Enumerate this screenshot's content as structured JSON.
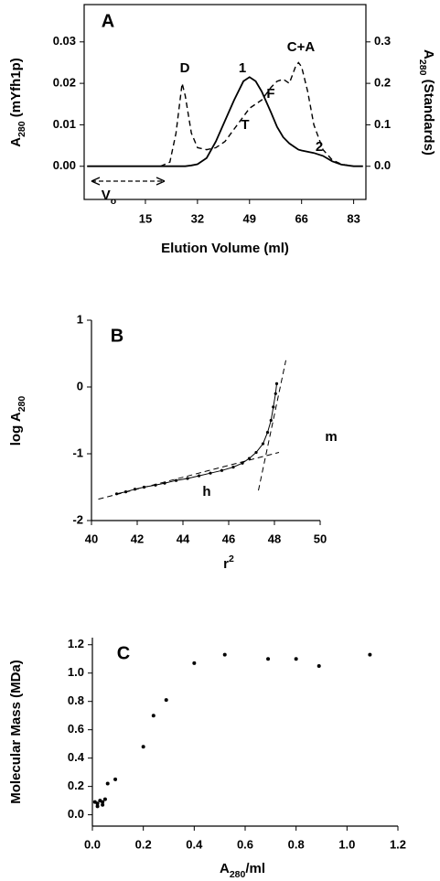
{
  "chart_data": [
    {
      "type": "line",
      "title": "A",
      "xlabel": "Elution Volume (ml)",
      "ylabel": [
        "A",
        "280",
        " (mYfh1p)"
      ],
      "y2label": [
        "A",
        "280",
        " (Standards)"
      ],
      "x": [
        -4,
        0,
        5,
        10,
        15,
        20,
        23,
        25,
        27,
        28,
        30,
        32,
        35,
        38,
        41,
        44,
        47,
        49,
        51,
        53,
        56,
        58,
        60,
        62,
        64,
        65,
        66,
        68,
        70,
        73,
        76,
        79,
        83,
        86
      ],
      "series": [
        {
          "color": "#000000",
          "dash": false,
          "values": [
            0,
            0,
            0,
            0,
            0,
            0,
            0,
            0,
            0,
            0,
            0.0002,
            0.0005,
            0.002,
            0.006,
            0.011,
            0.016,
            0.0205,
            0.0215,
            0.0205,
            0.018,
            0.013,
            0.0095,
            0.007,
            0.0055,
            0.0045,
            0.004,
            0.0038,
            0.0035,
            0.0032,
            0.0025,
            0.0012,
            0.0004,
            0,
            0
          ]
        },
        {
          "color": "#000000",
          "dash": true,
          "axis": "y2",
          "values": [
            0,
            0,
            0,
            0,
            0,
            0,
            0.01,
            0.08,
            0.2,
            0.17,
            0.08,
            0.045,
            0.04,
            0.045,
            0.06,
            0.09,
            0.12,
            0.14,
            0.15,
            0.16,
            0.19,
            0.205,
            0.21,
            0.2,
            0.24,
            0.25,
            0.24,
            0.18,
            0.1,
            0.04,
            0.015,
            0.005,
            0,
            0
          ]
        }
      ],
      "xlim": [
        -5,
        87
      ],
      "xticks": [
        15,
        32,
        49,
        66,
        83
      ],
      "ylim": [
        -0.008,
        0.039
      ],
      "yticks": [
        {
          "value": 0,
          "label": "0.00"
        },
        {
          "value": 0.01,
          "label": "0.01"
        },
        {
          "value": 0.02,
          "label": "0.02"
        },
        {
          "value": 0.03,
          "label": "0.03"
        }
      ],
      "y2lim": [
        -0.08,
        0.39
      ],
      "y2ticks": [
        {
          "value": 0,
          "label": "0.0"
        },
        0.1,
        0.2,
        0.3
      ],
      "annotations": [
        "D",
        "1",
        "T",
        "F",
        "C+A",
        "2",
        [
          "V",
          "o"
        ]
      ],
      "frame": "box"
    },
    {
      "type": "scatter",
      "title": "B",
      "xlabel": {
        "base": "r",
        "sup": "2"
      },
      "ylabel": [
        "log A",
        "280"
      ],
      "x": [
        41.1,
        41.5,
        41.9,
        42.3,
        42.8,
        43.2,
        43.7,
        44.2,
        44.7,
        45.2,
        45.7,
        46.2,
        46.6,
        46.9,
        47.2,
        47.5,
        47.7,
        47.85,
        47.95,
        48.05,
        48.1
      ],
      "values": [
        -1.6,
        -1.57,
        -1.53,
        -1.5,
        -1.47,
        -1.44,
        -1.4,
        -1.37,
        -1.33,
        -1.29,
        -1.25,
        -1.2,
        -1.14,
        -1.07,
        -0.98,
        -0.85,
        -0.68,
        -0.5,
        -0.3,
        -0.1,
        0.05
      ],
      "connect": true,
      "fit_lines": [
        {
          "label": "h",
          "x": [
            40.3,
            48.2
          ],
          "values": [
            -1.68,
            -0.98
          ]
        },
        {
          "label": "m",
          "x": [
            47.3,
            48.5
          ],
          "values": [
            -1.55,
            0.4
          ]
        }
      ],
      "xlim": [
        40,
        50
      ],
      "xticks": [
        40,
        42,
        44,
        46,
        48,
        50
      ],
      "ylim": [
        -2,
        1
      ],
      "yticks": [
        1,
        0,
        -1,
        -2
      ],
      "frame": "axes"
    },
    {
      "type": "scatter",
      "title": "C",
      "xlabel": [
        "A",
        "280",
        "/ml"
      ],
      "ylabel": "Molecular Mass (MDa)",
      "x": [
        0.01,
        0.02,
        0.03,
        0.02,
        0.04,
        0.05,
        0.04,
        0.06,
        0.09,
        0.2,
        0.24,
        0.29,
        0.4,
        0.52,
        0.69,
        0.8,
        0.89,
        1.09
      ],
      "values": [
        0.09,
        0.08,
        0.1,
        0.06,
        0.07,
        0.11,
        0.09,
        0.22,
        0.25,
        0.48,
        0.7,
        0.81,
        1.07,
        1.13,
        1.1,
        1.1,
        1.05,
        1.13
      ],
      "connect": false,
      "xlim": [
        0,
        1.2
      ],
      "xticks": [
        {
          "value": 0,
          "label": "0.0"
        },
        0.2,
        0.4,
        0.6,
        0.8,
        {
          "value": 1,
          "label": "1.0"
        },
        1.2
      ],
      "ylim": [
        -0.08,
        1.25
      ],
      "yticks": [
        {
          "value": 0,
          "label": "0.0"
        },
        0.2,
        0.4,
        0.6,
        0.8,
        {
          "value": 1,
          "label": "1.0"
        },
        1.2
      ],
      "frame": "axes"
    }
  ]
}
